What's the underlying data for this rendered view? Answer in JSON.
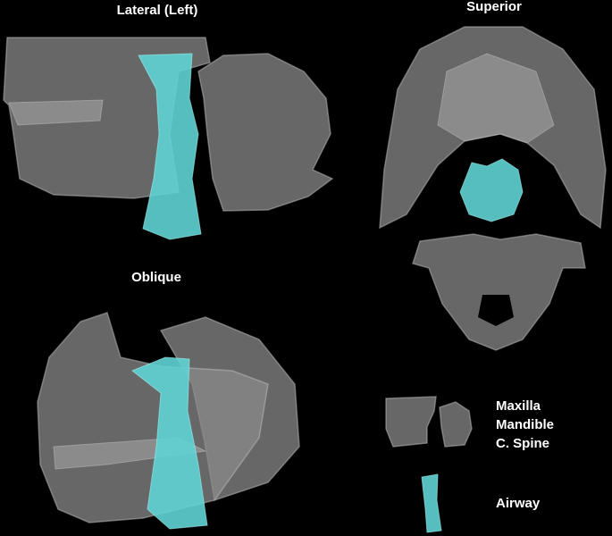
{
  "panels": {
    "lateral": {
      "title": "Lateral (Left)"
    },
    "superior": {
      "title": "Superior"
    },
    "oblique": {
      "title": "Oblique"
    }
  },
  "legend": {
    "bones": [
      "Maxilla",
      "Mandible",
      "C. Spine"
    ],
    "airway": "Airway"
  }
}
